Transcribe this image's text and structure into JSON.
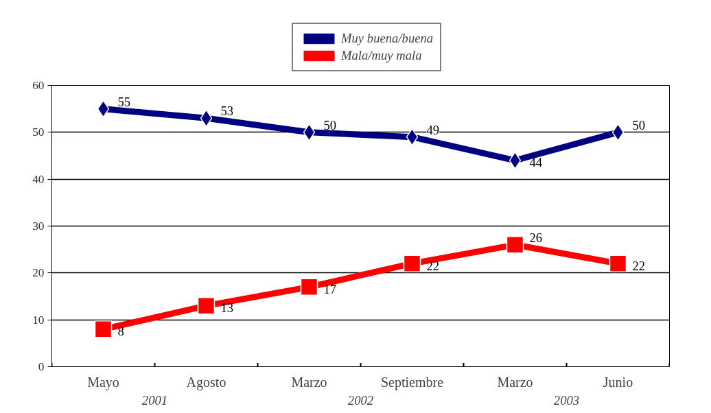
{
  "chart_data": {
    "type": "line",
    "categories": [
      "Mayo",
      "Agosto",
      "Marzo",
      "Septiembre",
      "Marzo",
      "Junio"
    ],
    "series": [
      {
        "name": "Muy buena/buena",
        "color": "#000080",
        "values": [
          55,
          53,
          50,
          49,
          44,
          50
        ],
        "marker": "diamond"
      },
      {
        "name": "Mala/muy mala",
        "color": "#ff0000",
        "values": [
          8,
          13,
          17,
          22,
          26,
          22
        ],
        "marker": "square"
      }
    ],
    "ylim": [
      0,
      60
    ],
    "yticks": [
      0,
      10,
      20,
      30,
      40,
      50,
      60
    ],
    "grid": "y",
    "legend": "top",
    "data_labels": true,
    "annotations": [
      "2001",
      "2002",
      "2003"
    ]
  }
}
